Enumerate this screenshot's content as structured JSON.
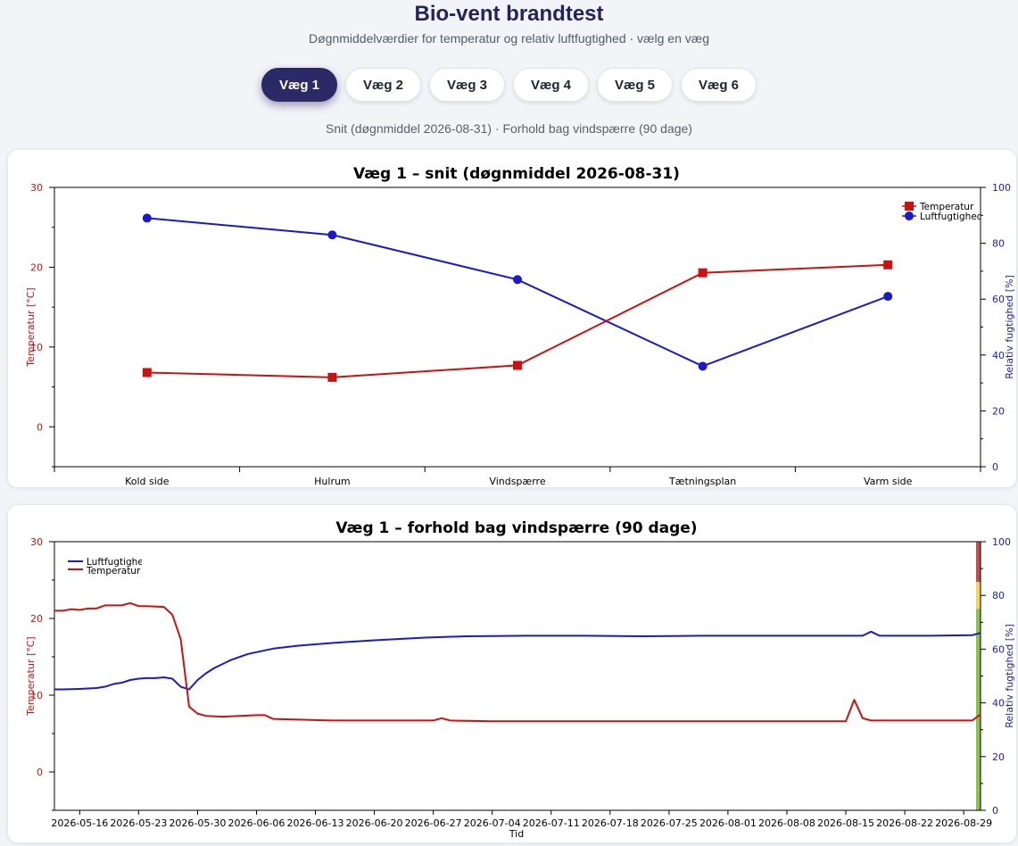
{
  "header": {
    "title": "Bio-vent brandtest",
    "subtitle": "Døgnmiddelværdier for temperatur og relativ luftfugtighed · vælg en væg"
  },
  "tabs": [
    {
      "label": "Væg 1",
      "active": true
    },
    {
      "label": "Væg 2",
      "active": false
    },
    {
      "label": "Væg 3",
      "active": false
    },
    {
      "label": "Væg 4",
      "active": false
    },
    {
      "label": "Væg 5",
      "active": false
    },
    {
      "label": "Væg 6",
      "active": false
    }
  ],
  "status_line": "Snit (døgnmiddel 2026-08-31) · Forhold bag vindspærre (90 dage)",
  "colors": {
    "temperature": "#cc1111",
    "humidity": "#1a1acc",
    "accent": "#2c2a66",
    "band_red": "#c0504d",
    "band_yellow": "#f2d65c",
    "band_green": "#8bc34a"
  },
  "chart_data": [
    {
      "type": "line",
      "title": "Væg 1 – snit (døgnmiddel 2026-08-31)",
      "categories": [
        "Kold side",
        "Hulrum",
        "Vindspærre",
        "Tætningsplan",
        "Varm side"
      ],
      "ylabel": "Temperatur [°C]",
      "y2label": "Relativ fugtighed [%]",
      "ylim": [
        -5,
        30
      ],
      "y2lim": [
        0,
        100
      ],
      "y_ticks": [
        0,
        10,
        20,
        30
      ],
      "y2_ticks": [
        0,
        20,
        40,
        60,
        80,
        100
      ],
      "legend_position": "top-right",
      "series": [
        {
          "name": "Temperatur",
          "axis": "left",
          "marker": "square",
          "values": [
            6.8,
            6.2,
            7.7,
            19.3,
            20.3
          ]
        },
        {
          "name": "Luftfugtighed",
          "axis": "right",
          "marker": "circle",
          "values": [
            89,
            83,
            67,
            36,
            61
          ]
        }
      ]
    },
    {
      "type": "line",
      "title": "Væg 1 – forhold bag vindspærre (90 dage)",
      "xlabel": "Tid",
      "ylabel": "Temperatur [°C]",
      "y2label": "Relativ fugtighed [%]",
      "xlim": [
        "2026-05-13",
        "2026-08-31"
      ],
      "ylim": [
        -5,
        30
      ],
      "y2lim": [
        0,
        100
      ],
      "y_ticks": [
        0,
        10,
        20,
        30
      ],
      "y2_ticks": [
        0,
        20,
        40,
        60,
        80,
        100
      ],
      "x_tick_labels": [
        "2026-05-16",
        "2026-05-23",
        "2026-05-30",
        "2026-06-06",
        "2026-06-13",
        "2026-06-20",
        "2026-06-27",
        "2026-07-04",
        "2026-07-11",
        "2026-07-18",
        "2026-07-25",
        "2026-08-01",
        "2026-08-08",
        "2026-08-15",
        "2026-08-22",
        "2026-08-29"
      ],
      "legend_position": "top-left",
      "humidity_bands": [
        {
          "from": 0,
          "to": 75,
          "color": "#8bc34a"
        },
        {
          "from": 75,
          "to": 85,
          "color": "#f2d65c"
        },
        {
          "from": 85,
          "to": 100,
          "color": "#c0504d"
        }
      ],
      "series": [
        {
          "name": "Luftfugtighed",
          "axis": "right",
          "x": [
            "2026-05-13",
            "2026-05-14",
            "2026-05-16",
            "2026-05-18",
            "2026-05-19",
            "2026-05-20",
            "2026-05-21",
            "2026-05-22",
            "2026-05-23",
            "2026-05-24",
            "2026-05-25",
            "2026-05-26",
            "2026-05-27",
            "2026-05-28",
            "2026-05-29",
            "2026-05-30",
            "2026-05-31",
            "2026-06-01",
            "2026-06-03",
            "2026-06-05",
            "2026-06-08",
            "2026-06-11",
            "2026-06-15",
            "2026-06-20",
            "2026-06-26",
            "2026-07-01",
            "2026-07-08",
            "2026-07-15",
            "2026-07-22",
            "2026-07-29",
            "2026-08-05",
            "2026-08-12",
            "2026-08-17",
            "2026-08-18",
            "2026-08-19",
            "2026-08-25",
            "2026-08-30",
            "2026-08-31"
          ],
          "values": [
            45,
            45,
            45.2,
            45.5,
            46,
            47,
            47.5,
            48.5,
            49,
            49.2,
            49.2,
            49.5,
            49,
            46,
            45,
            48.5,
            51,
            53,
            56,
            58.2,
            60.2,
            61.3,
            62.3,
            63.3,
            64.3,
            64.8,
            65,
            65,
            64.8,
            65,
            65,
            65,
            65,
            66.5,
            65,
            65,
            65.2,
            66
          ]
        },
        {
          "name": "Temperatur",
          "axis": "left",
          "x": [
            "2026-05-13",
            "2026-05-14",
            "2026-05-15",
            "2026-05-16",
            "2026-05-17",
            "2026-05-18",
            "2026-05-19",
            "2026-05-21",
            "2026-05-22",
            "2026-05-23",
            "2026-05-24",
            "2026-05-26",
            "2026-05-27",
            "2026-05-28",
            "2026-05-29",
            "2026-05-30",
            "2026-05-31",
            "2026-06-02",
            "2026-06-04",
            "2026-06-06",
            "2026-06-07",
            "2026-06-08",
            "2026-06-15",
            "2026-06-20",
            "2026-06-27",
            "2026-06-28",
            "2026-06-29",
            "2026-07-04",
            "2026-07-18",
            "2026-08-15",
            "2026-08-16",
            "2026-08-17",
            "2026-08-18",
            "2026-08-19",
            "2026-08-30",
            "2026-08-31"
          ],
          "values": [
            21,
            21,
            21.2,
            21.1,
            21.3,
            21.3,
            21.7,
            21.7,
            22,
            21.6,
            21.6,
            21.5,
            20.5,
            17.3,
            8.5,
            7.6,
            7.3,
            7.2,
            7.3,
            7.4,
            7.4,
            6.9,
            6.7,
            6.7,
            6.7,
            7,
            6.7,
            6.6,
            6.6,
            6.6,
            9.4,
            7,
            6.7,
            6.7,
            6.7,
            7.5
          ]
        }
      ]
    }
  ]
}
